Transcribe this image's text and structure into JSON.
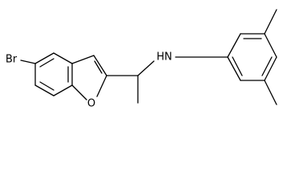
{
  "atoms": [
    {
      "label": "Br"
    },
    {
      "label": "O"
    },
    {
      "label": "HN"
    }
  ]
}
